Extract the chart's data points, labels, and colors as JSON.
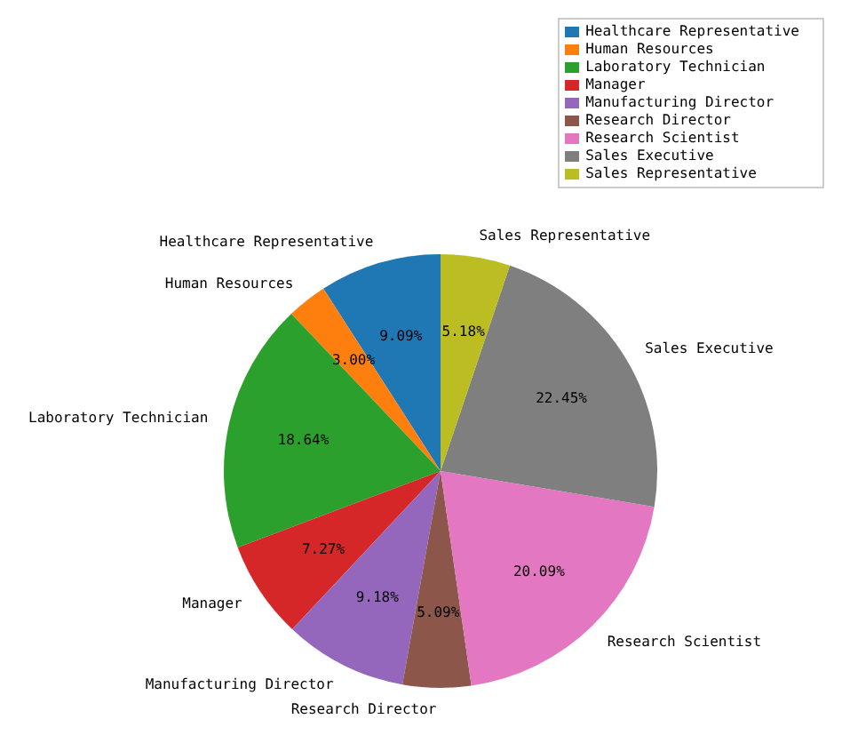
{
  "chart_data": {
    "type": "pie",
    "categories": [
      "Healthcare Representative",
      "Human Resources",
      "Laboratory Technician",
      "Manager",
      "Manufacturing Director",
      "Research Director",
      "Research Scientist",
      "Sales Executive",
      "Sales Representative"
    ],
    "values": [
      9.09,
      3.0,
      18.64,
      7.27,
      9.18,
      5.09,
      20.09,
      22.45,
      5.18
    ],
    "value_labels": [
      "9.09%",
      "3.00%",
      "18.64%",
      "7.27%",
      "9.18%",
      "5.09%",
      "20.09%",
      "22.45%",
      "5.18%"
    ],
    "colors": [
      "#1f77b4",
      "#ff7f0e",
      "#2ca02c",
      "#d62728",
      "#9467bd",
      "#8c564b",
      "#e377c2",
      "#7f7f7f",
      "#bcbd22"
    ],
    "legend": "top right"
  }
}
